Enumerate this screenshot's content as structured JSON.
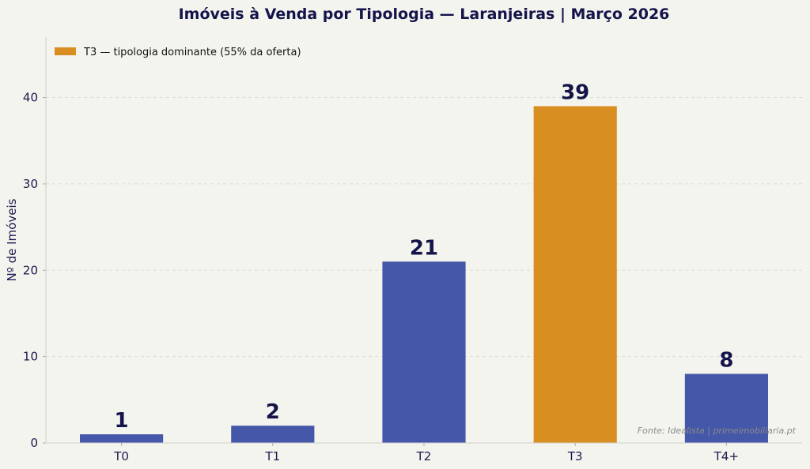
{
  "chart_data": {
    "type": "bar",
    "title": "Imóveis à Venda por Tipologia — Laranjeiras | Março 2026",
    "xlabel": "",
    "ylabel": "Nº de Imóveis",
    "categories": [
      "T0",
      "T1",
      "T2",
      "T3",
      "T4+"
    ],
    "values": [
      1,
      2,
      21,
      39,
      8
    ],
    "data_labels": [
      "1",
      "2",
      "21",
      "39",
      "8"
    ],
    "highlight_index": 3,
    "ylim": [
      0,
      47
    ],
    "yticks": [
      0,
      10,
      20,
      30,
      40
    ],
    "grid": "horizontal dashed",
    "legend": {
      "placement": "top-left",
      "entries": [
        {
          "label": "T3 — tipologia dominante (55% da oferta)",
          "color": "#d98e22"
        }
      ]
    },
    "annotation": "Fonte: Idealista | primeimobiliaria.pt",
    "colors": {
      "default": "#4557a8",
      "highlight": "#d98e22",
      "background": "#f4f4ef"
    }
  }
}
